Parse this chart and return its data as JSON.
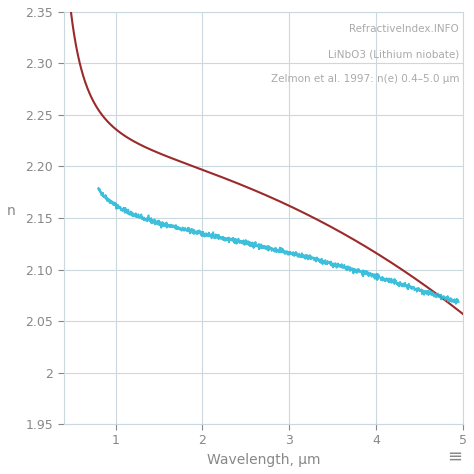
{
  "title_line1": "RefractiveIndex.INFO",
  "title_line2": "LiNbO3 (Lithium niobate)",
  "title_line3": "Zelmon et al. 1997: n(e) 0.4–5.0 μm",
  "xlabel": "Wavelength, μm",
  "ylabel": "n",
  "xlim": [
    0.4,
    5.0
  ],
  "ylim": [
    1.95,
    2.35
  ],
  "xticks": [
    1,
    2,
    3,
    4,
    5
  ],
  "yticks": [
    1.95,
    2.0,
    2.05,
    2.1,
    2.15,
    2.2,
    2.25,
    2.3,
    2.35
  ],
  "red_color": "#9b2a2a",
  "blue_color": "#29b8d8",
  "bg_color": "#ffffff",
  "grid_color": "#ccd8e0",
  "text_color": "#888888",
  "tick_color": "#888888",
  "annotation_color": "#aaaaaa",
  "red_x_start": 0.4,
  "red_x_end": 5.0,
  "blue_x_start": 0.8,
  "blue_x_end": 4.95,
  "noise_std": 0.0012
}
